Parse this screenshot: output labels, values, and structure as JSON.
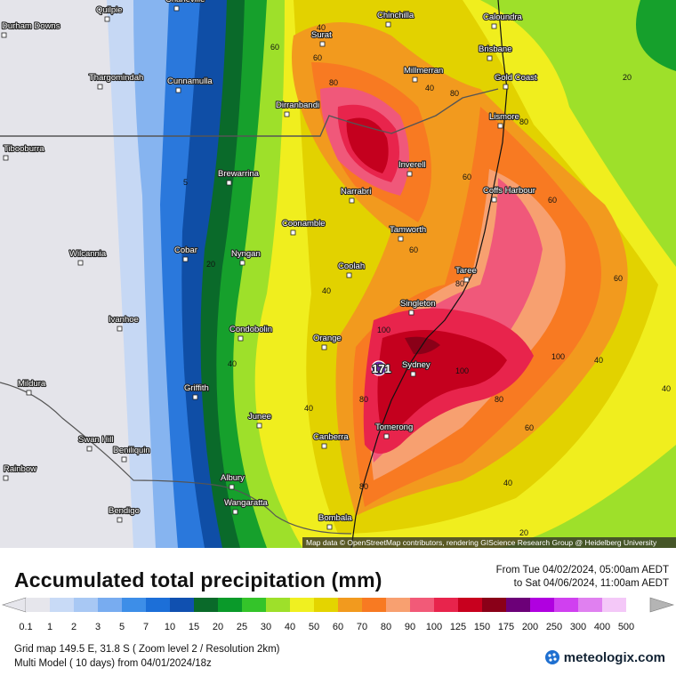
{
  "map": {
    "attribution": "Map data © OpenStreetMap contributors, rendering GIScience Research Group @ Heidelberg University",
    "cities": [
      {
        "name": "Quilpie"
      },
      {
        "name": "Durham Downs"
      },
      {
        "name": "Charleville"
      },
      {
        "name": "Surat"
      },
      {
        "name": "Chinchilla"
      },
      {
        "name": "Caloundra"
      },
      {
        "name": "Brisbane"
      },
      {
        "name": "Millmerran"
      },
      {
        "name": "Gold Coast"
      },
      {
        "name": "Thargomindah"
      },
      {
        "name": "Cunnamulla"
      },
      {
        "name": "Dirranbandi"
      },
      {
        "name": "Lismore"
      },
      {
        "name": "Tibooburra"
      },
      {
        "name": "Inverell"
      },
      {
        "name": "Brewarrina"
      },
      {
        "name": "Narrabri"
      },
      {
        "name": "Coffs Harbour"
      },
      {
        "name": "Coonamble"
      },
      {
        "name": "Tamworth"
      },
      {
        "name": "Wilcannia"
      },
      {
        "name": "Cobar"
      },
      {
        "name": "Nyngan"
      },
      {
        "name": "Coolah"
      },
      {
        "name": "Taree"
      },
      {
        "name": "Singleton"
      },
      {
        "name": "Ivanhoe"
      },
      {
        "name": "Condobolin"
      },
      {
        "name": "Orange"
      },
      {
        "name": "Sydney"
      },
      {
        "name": "Mildura"
      },
      {
        "name": "Griffith"
      },
      {
        "name": "Junee"
      },
      {
        "name": "Swan Hill"
      },
      {
        "name": "Deniliquin"
      },
      {
        "name": "Canberra"
      },
      {
        "name": "Tomerong"
      },
      {
        "name": "Rainbow"
      },
      {
        "name": "Albury"
      },
      {
        "name": "Wangaratta"
      },
      {
        "name": "Bendigo"
      },
      {
        "name": "Bombala"
      }
    ],
    "max_marker": "171",
    "contour_labels": [
      "40",
      "60",
      "60",
      "80",
      "40",
      "20",
      "80",
      "5",
      "60",
      "20",
      "80",
      "60",
      "60",
      "80",
      "60",
      "100",
      "40",
      "100",
      "80",
      "40",
      "40",
      "100",
      "80",
      "40",
      "60",
      "40",
      "40",
      "80",
      "20"
    ]
  },
  "legend": {
    "title": "Accumulated total precipitation (mm)",
    "period_from": "From Tue 04/02/2024, 05:00am AEDT",
    "period_to": "to Sat 04/06/2024, 11:00am AEDT",
    "scale": [
      {
        "label": "0.1",
        "color": "#e6e6ec"
      },
      {
        "label": "1",
        "color": "#c8daf6"
      },
      {
        "label": "2",
        "color": "#a8c8f4"
      },
      {
        "label": "3",
        "color": "#78acf0"
      },
      {
        "label": "5",
        "color": "#3d8ee8"
      },
      {
        "label": "7",
        "color": "#1c6fd8"
      },
      {
        "label": "10",
        "color": "#1050b0"
      },
      {
        "label": "15",
        "color": "#0a6a2a"
      },
      {
        "label": "20",
        "color": "#0a9a2a"
      },
      {
        "label": "25",
        "color": "#34c42a"
      },
      {
        "label": "30",
        "color": "#9ee02a"
      },
      {
        "label": "40",
        "color": "#f0f020"
      },
      {
        "label": "50",
        "color": "#e4d400"
      },
      {
        "label": "60",
        "color": "#f29a1e"
      },
      {
        "label": "70",
        "color": "#f87a22"
      },
      {
        "label": "80",
        "color": "#f8a070"
      },
      {
        "label": "90",
        "color": "#f25a78"
      },
      {
        "label": "100",
        "color": "#e8244c"
      },
      {
        "label": "125",
        "color": "#c8001e"
      },
      {
        "label": "150",
        "color": "#8a0018"
      },
      {
        "label": "175",
        "color": "#6c0078"
      },
      {
        "label": "200",
        "color": "#b000e0"
      },
      {
        "label": "250",
        "color": "#d040f0"
      },
      {
        "label": "300",
        "color": "#e080f0"
      },
      {
        "label": "400",
        "color": "#f4c8f8"
      },
      {
        "label": "500",
        "color": "#ffffff"
      }
    ],
    "scale_end_color": "#b4b4b4"
  },
  "footer": {
    "line1": "Grid map 149.5 E, 31.8 S ( Zoom level 2 / Resolution 2km)",
    "line2": "Multi Model ( 10 days)  from  04/01/2024/18z",
    "brand": "meteologix.com"
  }
}
